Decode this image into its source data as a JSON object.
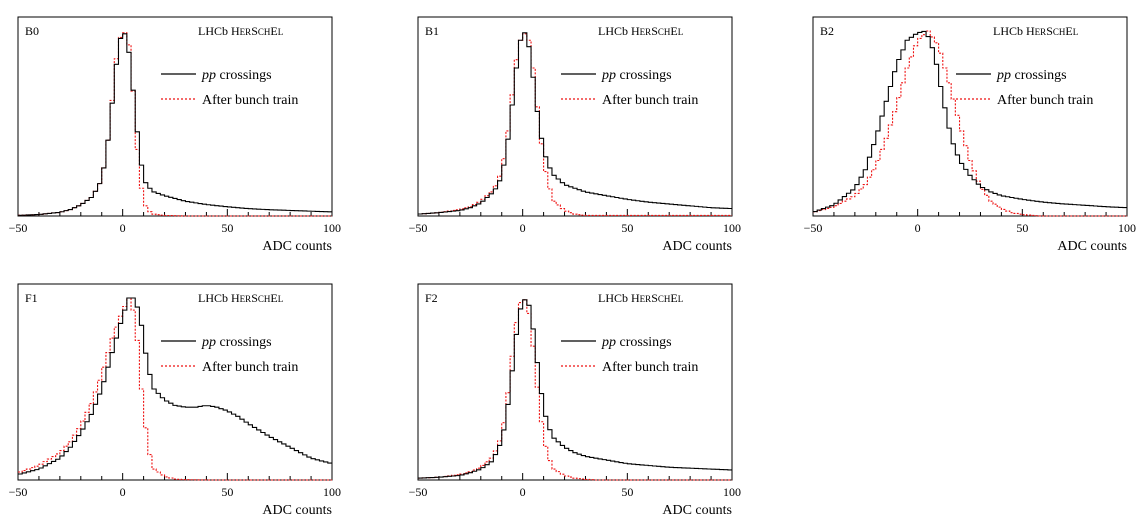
{
  "legend": {
    "crossings_italic": "pp",
    "crossings_rest": " crossings",
    "bunch_train": "After bunch train"
  },
  "experiment": {
    "lhcb": "LHCb ",
    "h": "H",
    "er": "ER",
    "s": "S",
    "ch": "CH",
    "e": "E",
    "l": "L"
  },
  "colors": {
    "pp_crossings": "#000000",
    "after_bunch_train": "#ee1111"
  },
  "chart_data": [
    {
      "type": "line",
      "panel": "B0",
      "xlabel": "ADC counts",
      "xlim": [
        -50,
        100
      ],
      "ylim": [
        0,
        1.0
      ],
      "xticks": [
        -50,
        0,
        50,
        100
      ],
      "series": [
        {
          "key": "pp",
          "x": [
            -50,
            -40,
            -30,
            -25,
            -20,
            -15,
            -12,
            -10,
            -8,
            -6,
            -4,
            -2,
            0,
            2,
            4,
            6,
            8,
            10,
            12,
            15,
            20,
            30,
            40,
            50,
            60,
            70,
            80,
            90,
            100
          ],
          "y": [
            0.003,
            0.008,
            0.02,
            0.035,
            0.06,
            0.1,
            0.15,
            0.2,
            0.32,
            0.5,
            0.72,
            0.92,
            1.0,
            0.97,
            0.8,
            0.56,
            0.35,
            0.2,
            0.16,
            0.13,
            0.11,
            0.08,
            0.062,
            0.05,
            0.04,
            0.034,
            0.03,
            0.026,
            0.022
          ]
        },
        {
          "key": "train",
          "x": [
            -50,
            -40,
            -30,
            -25,
            -20,
            -15,
            -12,
            -10,
            -8,
            -6,
            -4,
            -2,
            0,
            2,
            4,
            6,
            8,
            10,
            12,
            15,
            20,
            30
          ],
          "y": [
            0.003,
            0.008,
            0.02,
            0.035,
            0.06,
            0.1,
            0.15,
            0.2,
            0.32,
            0.5,
            0.75,
            0.95,
            0.98,
            1.0,
            0.85,
            0.5,
            0.22,
            0.08,
            0.03,
            0.01,
            0.003,
            0.0
          ]
        }
      ]
    },
    {
      "type": "line",
      "panel": "B1",
      "xlabel": "ADC counts",
      "xlim": [
        -50,
        100
      ],
      "ylim": [
        0,
        1.0
      ],
      "xticks": [
        -50,
        0,
        50,
        100
      ],
      "series": [
        {
          "key": "pp",
          "x": [
            -50,
            -40,
            -30,
            -25,
            -20,
            -15,
            -12,
            -10,
            -8,
            -6,
            -4,
            -2,
            0,
            2,
            4,
            6,
            8,
            10,
            12,
            15,
            20,
            25,
            30,
            40,
            50,
            60,
            70,
            80,
            90,
            100
          ],
          "y": [
            0.01,
            0.018,
            0.03,
            0.045,
            0.07,
            0.12,
            0.16,
            0.22,
            0.33,
            0.5,
            0.7,
            0.9,
            1.0,
            0.98,
            0.85,
            0.65,
            0.48,
            0.36,
            0.28,
            0.22,
            0.17,
            0.15,
            0.13,
            0.11,
            0.09,
            0.075,
            0.065,
            0.055,
            0.045,
            0.04
          ]
        },
        {
          "key": "train",
          "x": [
            -50,
            -40,
            -30,
            -25,
            -20,
            -15,
            -12,
            -10,
            -8,
            -6,
            -4,
            -2,
            0,
            2,
            4,
            6,
            8,
            10,
            12,
            15,
            20,
            25,
            30
          ],
          "y": [
            0.01,
            0.018,
            0.035,
            0.05,
            0.08,
            0.13,
            0.18,
            0.25,
            0.37,
            0.55,
            0.76,
            0.93,
            0.97,
            1.0,
            0.9,
            0.7,
            0.48,
            0.3,
            0.18,
            0.08,
            0.03,
            0.01,
            0.003
          ]
        }
      ]
    },
    {
      "type": "line",
      "panel": "B2",
      "xlabel": "ADC counts",
      "xlim": [
        -50,
        100
      ],
      "ylim": [
        0,
        1.0
      ],
      "xticks": [
        -50,
        0,
        50,
        100
      ],
      "series": [
        {
          "key": "pp",
          "x": [
            -50,
            -40,
            -30,
            -25,
            -20,
            -15,
            -10,
            -5,
            0,
            4,
            8,
            12,
            16,
            20,
            25,
            30,
            35,
            40,
            50,
            60,
            70,
            80,
            90,
            100
          ],
          "y": [
            0.02,
            0.06,
            0.15,
            0.25,
            0.42,
            0.62,
            0.82,
            0.95,
            0.99,
            1.0,
            0.88,
            0.64,
            0.42,
            0.3,
            0.22,
            0.16,
            0.13,
            0.11,
            0.09,
            0.075,
            0.065,
            0.058,
            0.05,
            0.045
          ]
        },
        {
          "key": "train",
          "x": [
            -50,
            -40,
            -30,
            -25,
            -20,
            -15,
            -10,
            -5,
            0,
            5,
            10,
            15,
            20,
            25,
            30,
            35,
            40,
            45,
            50,
            55,
            60
          ],
          "y": [
            0.02,
            0.05,
            0.11,
            0.17,
            0.27,
            0.42,
            0.6,
            0.8,
            0.95,
            1.0,
            0.92,
            0.72,
            0.5,
            0.3,
            0.16,
            0.08,
            0.04,
            0.018,
            0.008,
            0.003,
            0.0
          ]
        }
      ]
    },
    {
      "type": "line",
      "panel": "F1",
      "xlabel": "ADC counts",
      "xlim": [
        -50,
        100
      ],
      "ylim": [
        0,
        1.0
      ],
      "xticks": [
        -50,
        0,
        50,
        100
      ],
      "series": [
        {
          "key": "pp",
          "x": [
            -50,
            -40,
            -30,
            -25,
            -20,
            -15,
            -10,
            -5,
            0,
            3,
            6,
            9,
            12,
            15,
            20,
            25,
            30,
            35,
            40,
            45,
            50,
            55,
            60,
            70,
            80,
            90,
            100
          ],
          "y": [
            0.03,
            0.06,
            0.12,
            0.18,
            0.26,
            0.36,
            0.5,
            0.7,
            0.9,
            1.0,
            1.0,
            0.85,
            0.62,
            0.5,
            0.44,
            0.41,
            0.4,
            0.4,
            0.41,
            0.4,
            0.38,
            0.35,
            0.31,
            0.24,
            0.18,
            0.12,
            0.09
          ]
        },
        {
          "key": "train",
          "x": [
            -50,
            -40,
            -30,
            -25,
            -20,
            -15,
            -10,
            -5,
            0,
            3,
            6,
            9,
            12,
            15,
            20,
            25,
            30,
            40
          ],
          "y": [
            0.04,
            0.08,
            0.15,
            0.21,
            0.3,
            0.42,
            0.58,
            0.78,
            0.93,
            1.0,
            0.9,
            0.5,
            0.18,
            0.06,
            0.02,
            0.005,
            0.002,
            0.0
          ]
        }
      ]
    },
    {
      "type": "line",
      "panel": "F2",
      "xlabel": "ADC counts",
      "xlim": [
        -50,
        100
      ],
      "ylim": [
        0,
        1.0
      ],
      "xticks": [
        -50,
        0,
        50,
        100
      ],
      "series": [
        {
          "key": "pp",
          "x": [
            -50,
            -40,
            -30,
            -25,
            -20,
            -15,
            -12,
            -10,
            -8,
            -6,
            -4,
            -2,
            0,
            2,
            4,
            6,
            8,
            10,
            12,
            15,
            20,
            25,
            30,
            40,
            50,
            60,
            70,
            80,
            90,
            100
          ],
          "y": [
            0.01,
            0.015,
            0.025,
            0.04,
            0.06,
            0.1,
            0.16,
            0.22,
            0.33,
            0.5,
            0.7,
            0.9,
            0.98,
            1.0,
            0.92,
            0.74,
            0.55,
            0.4,
            0.3,
            0.23,
            0.18,
            0.15,
            0.13,
            0.11,
            0.09,
            0.08,
            0.07,
            0.065,
            0.06,
            0.055
          ]
        },
        {
          "key": "train",
          "x": [
            -50,
            -40,
            -30,
            -25,
            -20,
            -15,
            -12,
            -10,
            -8,
            -6,
            -4,
            -2,
            0,
            2,
            4,
            6,
            8,
            10,
            12,
            15,
            20,
            25,
            30,
            35
          ],
          "y": [
            0.01,
            0.015,
            0.03,
            0.045,
            0.07,
            0.12,
            0.18,
            0.25,
            0.38,
            0.58,
            0.78,
            0.95,
            1.0,
            0.98,
            0.85,
            0.62,
            0.4,
            0.24,
            0.13,
            0.06,
            0.025,
            0.01,
            0.004,
            0.0
          ]
        }
      ]
    }
  ]
}
